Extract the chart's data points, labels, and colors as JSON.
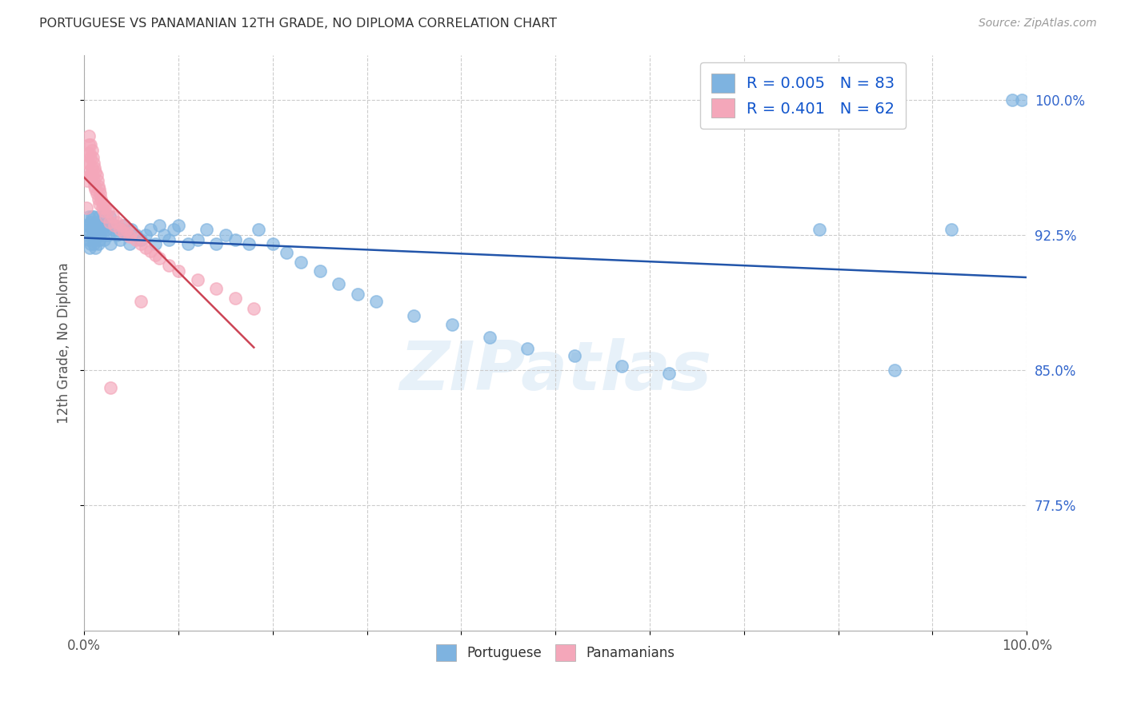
{
  "title": "PORTUGUESE VS PANAMANIAN 12TH GRADE, NO DIPLOMA CORRELATION CHART",
  "source": "Source: ZipAtlas.com",
  "ylabel": "12th Grade, No Diploma",
  "watermark": "ZIPatlas",
  "blue_R": 0.005,
  "blue_N": 83,
  "pink_R": 0.401,
  "pink_N": 62,
  "xlim": [
    0.0,
    1.0
  ],
  "ylim": [
    0.705,
    1.025
  ],
  "xticks": [
    0.0,
    0.1,
    0.2,
    0.3,
    0.4,
    0.5,
    0.6,
    0.7,
    0.8,
    0.9,
    1.0
  ],
  "xticklabels": [
    "0.0%",
    "",
    "",
    "",
    "",
    "",
    "",
    "",
    "",
    "",
    "100.0%"
  ],
  "yticks": [
    0.775,
    0.85,
    0.925,
    1.0
  ],
  "yticklabels": [
    "77.5%",
    "85.0%",
    "92.5%",
    "100.0%"
  ],
  "blue_color": "#7EB3E0",
  "pink_color": "#F4A7BA",
  "blue_line_color": "#2255AA",
  "pink_line_color": "#CC4455",
  "legend_color": "#1155CC",
  "grid_color": "#CCCCCC",
  "background_color": "#FFFFFF",
  "title_color": "#333333",
  "ylabel_color": "#555555",
  "ytick_color": "#3366CC",
  "xtick_color": "#555555",
  "blue_scatter_x": [
    0.002,
    0.003,
    0.004,
    0.005,
    0.005,
    0.006,
    0.006,
    0.007,
    0.007,
    0.008,
    0.008,
    0.009,
    0.009,
    0.01,
    0.01,
    0.01,
    0.011,
    0.011,
    0.012,
    0.012,
    0.013,
    0.013,
    0.014,
    0.015,
    0.015,
    0.016,
    0.016,
    0.017,
    0.018,
    0.019,
    0.02,
    0.021,
    0.022,
    0.023,
    0.025,
    0.027,
    0.028,
    0.03,
    0.032,
    0.035,
    0.038,
    0.04,
    0.042,
    0.045,
    0.048,
    0.05,
    0.055,
    0.06,
    0.065,
    0.07,
    0.075,
    0.08,
    0.085,
    0.09,
    0.095,
    0.1,
    0.11,
    0.12,
    0.13,
    0.14,
    0.15,
    0.16,
    0.175,
    0.185,
    0.2,
    0.215,
    0.23,
    0.25,
    0.27,
    0.29,
    0.31,
    0.35,
    0.39,
    0.43,
    0.47,
    0.52,
    0.57,
    0.62,
    0.78,
    0.86,
    0.92,
    0.985,
    0.995
  ],
  "blue_scatter_y": [
    0.93,
    0.925,
    0.928,
    0.935,
    0.922,
    0.93,
    0.918,
    0.932,
    0.92,
    0.928,
    0.935,
    0.925,
    0.93,
    0.928,
    0.92,
    0.935,
    0.922,
    0.93,
    0.928,
    0.918,
    0.932,
    0.925,
    0.93,
    0.928,
    0.92,
    0.935,
    0.922,
    0.925,
    0.93,
    0.928,
    0.935,
    0.922,
    0.93,
    0.928,
    0.925,
    0.935,
    0.92,
    0.928,
    0.93,
    0.925,
    0.922,
    0.928,
    0.93,
    0.925,
    0.92,
    0.928,
    0.925,
    0.922,
    0.925,
    0.928,
    0.92,
    0.93,
    0.925,
    0.922,
    0.928,
    0.93,
    0.92,
    0.922,
    0.928,
    0.92,
    0.925,
    0.922,
    0.92,
    0.928,
    0.92,
    0.915,
    0.91,
    0.905,
    0.898,
    0.892,
    0.888,
    0.88,
    0.875,
    0.868,
    0.862,
    0.858,
    0.852,
    0.848,
    0.928,
    0.85,
    0.928,
    1.0,
    1.0
  ],
  "pink_scatter_x": [
    0.002,
    0.003,
    0.003,
    0.004,
    0.004,
    0.005,
    0.005,
    0.005,
    0.006,
    0.006,
    0.007,
    0.007,
    0.007,
    0.008,
    0.008,
    0.009,
    0.009,
    0.01,
    0.01,
    0.011,
    0.011,
    0.012,
    0.012,
    0.013,
    0.013,
    0.014,
    0.015,
    0.015,
    0.016,
    0.016,
    0.017,
    0.018,
    0.019,
    0.02,
    0.021,
    0.022,
    0.023,
    0.025,
    0.027,
    0.03,
    0.032,
    0.035,
    0.038,
    0.04,
    0.042,
    0.045,
    0.048,
    0.05,
    0.055,
    0.06,
    0.065,
    0.07,
    0.075,
    0.08,
    0.09,
    0.1,
    0.12,
    0.14,
    0.16,
    0.18,
    0.028,
    0.06
  ],
  "pink_scatter_y": [
    0.94,
    0.965,
    0.955,
    0.97,
    0.96,
    0.98,
    0.975,
    0.965,
    0.97,
    0.958,
    0.975,
    0.968,
    0.958,
    0.972,
    0.962,
    0.968,
    0.958,
    0.965,
    0.955,
    0.962,
    0.952,
    0.96,
    0.95,
    0.958,
    0.948,
    0.955,
    0.952,
    0.945,
    0.95,
    0.942,
    0.948,
    0.945,
    0.94,
    0.942,
    0.938,
    0.94,
    0.935,
    0.938,
    0.932,
    0.935,
    0.93,
    0.932,
    0.928,
    0.93,
    0.926,
    0.928,
    0.924,
    0.926,
    0.922,
    0.92,
    0.918,
    0.916,
    0.914,
    0.912,
    0.908,
    0.905,
    0.9,
    0.895,
    0.89,
    0.884,
    0.84,
    0.888
  ]
}
